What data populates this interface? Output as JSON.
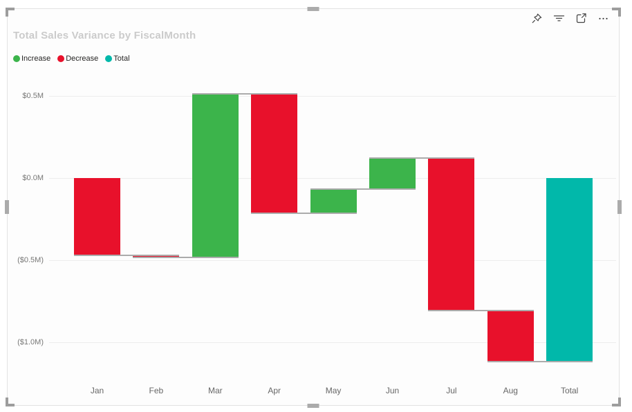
{
  "visual": {
    "title": "Total Sales Variance by FiscalMonth",
    "legend": [
      {
        "label": "Increase",
        "color": "#3CB44B"
      },
      {
        "label": "Decrease",
        "color": "#E8112B"
      },
      {
        "label": "Total",
        "color": "#01B8AA"
      }
    ],
    "toolbar_icons": [
      "pin-icon",
      "filter-icon",
      "focus-mode-icon",
      "more-options-icon"
    ]
  },
  "chart_data": {
    "type": "bar",
    "subtype": "waterfall",
    "title": "Total Sales Variance by FiscalMonth",
    "categories": [
      "Jan",
      "Feb",
      "Mar",
      "Apr",
      "May",
      "Jun",
      "Jul",
      "Aug",
      "Total"
    ],
    "columns": [
      {
        "label": "Jan",
        "kind": "decrease",
        "delta": -0.47
      },
      {
        "label": "Feb",
        "kind": "decrease",
        "delta": -0.013
      },
      {
        "label": "Mar",
        "kind": "increase",
        "delta": 0.996
      },
      {
        "label": "Apr",
        "kind": "decrease",
        "delta": -0.727
      },
      {
        "label": "May",
        "kind": "increase",
        "delta": 0.147
      },
      {
        "label": "Jun",
        "kind": "increase",
        "delta": 0.189
      },
      {
        "label": "Jul",
        "kind": "decrease",
        "delta": -0.929
      },
      {
        "label": "Aug",
        "kind": "decrease",
        "delta": -0.311
      },
      {
        "label": "Total",
        "kind": "total",
        "value": -1.118
      }
    ],
    "total_value_musd": -1.118,
    "units": "USD millions",
    "y_ticks": [
      {
        "label": "$0.5M",
        "value": 0.5
      },
      {
        "label": "$0.0M",
        "value": 0.0
      },
      {
        "label": "($0.5M)",
        "value": -0.5
      },
      {
        "label": "($1.0M)",
        "value": -1.0
      }
    ],
    "ylim": [
      -1.2,
      0.6
    ],
    "grid": true,
    "legend_position": "top-left",
    "colors": {
      "increase": "#3CB44B",
      "decrease": "#E8112B",
      "total": "#01B8AA",
      "connector": "#ABABAB",
      "gridline": "#EDEDED"
    }
  }
}
